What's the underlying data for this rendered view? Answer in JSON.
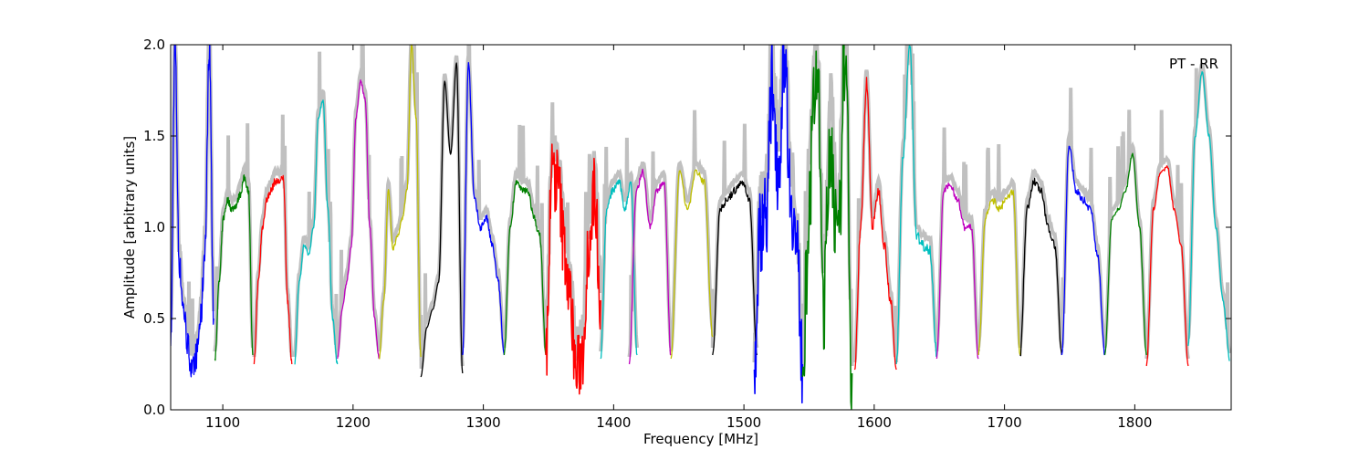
{
  "chart_data": {
    "type": "line",
    "title": "",
    "annotation": "PT - RR",
    "xlabel": "Frequency [MHz]",
    "ylabel": "Amplitude [arbitrary units]",
    "xlim": [
      1060,
      1874
    ],
    "ylim": [
      0.0,
      2.0
    ],
    "xticks": [
      "1100",
      "1200",
      "1300",
      "1400",
      "1500",
      "1600",
      "1700",
      "1800"
    ],
    "xtick_values": [
      1100,
      1200,
      1300,
      1400,
      1500,
      1600,
      1700,
      1800
    ],
    "yticks": [
      "0.0",
      "0.5",
      "1.0",
      "1.5",
      "2.0"
    ],
    "ytick_values": [
      0.0,
      0.5,
      1.0,
      1.5,
      2.0
    ],
    "grid": false,
    "background_color": "#c0c0c0",
    "series": [
      {
        "color": "#0000ff",
        "x_range": [
          1060,
          1093
        ],
        "noise": 0.08,
        "values": [
          0.35,
          2.0,
          0.8,
          0.55,
          0.35,
          0.2,
          0.3,
          0.5,
          0.9,
          2.0,
          0.5
        ]
      },
      {
        "color": "#008000",
        "x_range": [
          1094,
          1123
        ],
        "noise": 0.02,
        "values": [
          0.28,
          0.7,
          1.05,
          1.15,
          1.1,
          1.12,
          1.18,
          1.27,
          1.2,
          0.3
        ]
      },
      {
        "color": "#ff0000",
        "x_range": [
          1124,
          1153
        ],
        "noise": 0.02,
        "values": [
          0.25,
          0.7,
          1.0,
          1.15,
          1.2,
          1.25,
          1.25,
          1.27,
          0.6,
          0.25
        ]
      },
      {
        "color": "#00bfbf",
        "x_range": [
          1155,
          1188
        ],
        "noise": 0.01,
        "values": [
          0.25,
          0.7,
          0.9,
          0.85,
          1.0,
          1.6,
          1.7,
          1.1,
          0.5,
          0.25
        ]
      },
      {
        "color": "#bf00bf",
        "x_range": [
          1188,
          1220
        ],
        "noise": 0.01,
        "values": [
          0.28,
          0.55,
          0.7,
          0.9,
          1.6,
          1.8,
          1.7,
          1.0,
          0.5,
          0.28
        ]
      },
      {
        "color": "#bfbf00",
        "x_range": [
          1220,
          1252
        ],
        "noise": 0.01,
        "values": [
          0.28,
          0.6,
          1.2,
          0.88,
          0.95,
          1.05,
          1.2,
          2.0,
          1.6,
          0.29
        ]
      },
      {
        "color": "#000000",
        "x_range": [
          1252,
          1284
        ],
        "noise": 0.0,
        "values": [
          0.18,
          0.45,
          0.55,
          0.7,
          1.8,
          1.4,
          1.9,
          0.2
        ]
      },
      {
        "color": "#0000ff",
        "x_range": [
          1284,
          1316
        ],
        "noise": 0.02,
        "values": [
          0.3,
          1.9,
          1.15,
          1.0,
          1.05,
          0.9,
          0.7,
          0.3
        ]
      },
      {
        "color": "#008000",
        "x_range": [
          1316,
          1348
        ],
        "noise": 0.02,
        "values": [
          0.3,
          1.0,
          1.25,
          1.2,
          1.2,
          1.05,
          0.95,
          0.3
        ]
      },
      {
        "color": "#ff0000",
        "x_range": [
          1348,
          1390
        ],
        "noise": 0.2,
        "values": [
          0.3,
          1.3,
          1.25,
          0.9,
          0.6,
          0.2,
          0.3,
          0.9,
          1.2,
          0.6
        ]
      },
      {
        "color": "#00bfbf",
        "x_range": [
          1390,
          1418
        ],
        "noise": 0.02,
        "values": [
          0.28,
          1.1,
          1.2,
          1.25,
          1.1,
          1.25,
          0.3
        ]
      },
      {
        "color": "#bf00bf",
        "x_range": [
          1412,
          1444
        ],
        "noise": 0.02,
        "values": [
          0.25,
          1.2,
          1.3,
          1.0,
          1.2,
          1.25,
          0.3
        ]
      },
      {
        "color": "#bfbf00",
        "x_range": [
          1444,
          1476
        ],
        "noise": 0.02,
        "values": [
          0.28,
          1.3,
          1.1,
          1.3,
          1.25,
          0.4
        ]
      },
      {
        "color": "#000000",
        "x_range": [
          1476,
          1510
        ],
        "noise": 0.02,
        "values": [
          0.3,
          1.1,
          1.15,
          1.2,
          1.25,
          1.15,
          0.3
        ]
      },
      {
        "color": "#0000ff",
        "x_range": [
          1508,
          1545
        ],
        "noise": 0.25,
        "values": [
          0.22,
          1.0,
          1.1,
          1.8,
          1.3,
          2.0,
          1.2,
          0.9,
          0.25
        ]
      },
      {
        "color": "#008000",
        "x_range": [
          1545,
          1583
        ],
        "noise": 0.3,
        "values": [
          0.18,
          1.2,
          1.9,
          0.6,
          1.5,
          0.8,
          2.0,
          0.2
        ]
      },
      {
        "color": "#ff0000",
        "x_range": [
          1585,
          1617
        ],
        "noise": 0.03,
        "values": [
          0.22,
          1.0,
          1.8,
          1.0,
          1.2,
          0.9,
          0.6,
          0.22
        ]
      },
      {
        "color": "#00bfbf",
        "x_range": [
          1617,
          1648
        ],
        "noise": 0.03,
        "values": [
          0.25,
          1.4,
          2.0,
          0.95,
          0.9,
          0.88,
          0.3
        ]
      },
      {
        "color": "#bf00bf",
        "x_range": [
          1648,
          1680
        ],
        "noise": 0.02,
        "values": [
          0.28,
          1.2,
          1.23,
          1.15,
          1.0,
          1.0,
          0.28
        ]
      },
      {
        "color": "#bfbf00",
        "x_range": [
          1680,
          1712
        ],
        "noise": 0.02,
        "values": [
          0.3,
          1.05,
          1.15,
          1.1,
          1.15,
          1.2,
          0.3
        ]
      },
      {
        "color": "#000000",
        "x_range": [
          1712,
          1744
        ],
        "noise": 0.02,
        "values": [
          0.3,
          1.1,
          1.25,
          1.2,
          1.0,
          0.9,
          0.3
        ]
      },
      {
        "color": "#0000ff",
        "x_range": [
          1744,
          1777
        ],
        "noise": 0.02,
        "values": [
          0.3,
          1.45,
          1.2,
          1.15,
          1.1,
          0.85,
          0.3
        ]
      },
      {
        "color": "#008000",
        "x_range": [
          1777,
          1809
        ],
        "noise": 0.01,
        "values": [
          0.3,
          1.05,
          1.1,
          1.2,
          1.4,
          1.0,
          0.3
        ]
      },
      {
        "color": "#ff0000",
        "x_range": [
          1809,
          1841
        ],
        "noise": 0.01,
        "values": [
          0.24,
          1.1,
          1.3,
          1.33,
          1.1,
          0.9,
          0.24
        ]
      },
      {
        "color": "#00bfbf",
        "x_range": [
          1841,
          1873
        ],
        "noise": 0.01,
        "values": [
          0.35,
          1.5,
          1.85,
          1.5,
          1.0,
          0.6,
          0.27
        ]
      }
    ]
  }
}
